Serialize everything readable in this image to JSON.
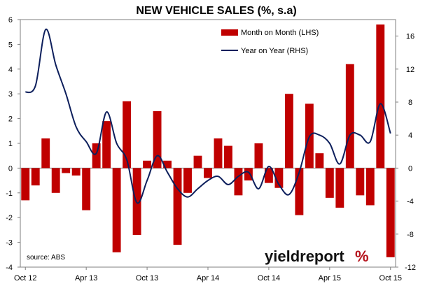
{
  "chart_data": {
    "type": "bar+line",
    "title": "NEW VEHICLE SALES (%, s.a)",
    "x_tick_labels": [
      "Oct 12",
      "Apr 13",
      "Oct 13",
      "Apr 14",
      "Oct 14",
      "Apr 15",
      "Oct 15"
    ],
    "months": [
      "Oct 12",
      "Nov 12",
      "Dec 12",
      "Jan 13",
      "Feb 13",
      "Mar 13",
      "Apr 13",
      "May 13",
      "Jun 13",
      "Jul 13",
      "Aug 13",
      "Sep 13",
      "Oct 13",
      "Nov 13",
      "Dec 13",
      "Jan 14",
      "Feb 14",
      "Mar 14",
      "Apr 14",
      "May 14",
      "Jun 14",
      "Jul 14",
      "Aug 14",
      "Sep 14",
      "Oct 14",
      "Nov 14",
      "Dec 14",
      "Jan 15",
      "Feb 15",
      "Mar 15",
      "Apr 15",
      "May 15",
      "Jun 15",
      "Jul 15",
      "Aug 15",
      "Sep 15",
      "Oct 15"
    ],
    "series": [
      {
        "name": "Month on Month (LHS)",
        "type": "bar",
        "axis": "left",
        "color": "#c00000",
        "values": [
          -1.3,
          -0.7,
          1.2,
          -1.0,
          -0.2,
          -0.3,
          -1.7,
          1.0,
          1.9,
          -3.4,
          2.7,
          -2.7,
          0.3,
          2.3,
          0.3,
          -3.1,
          -1.0,
          0.5,
          -0.4,
          1.2,
          0.9,
          -1.1,
          -0.5,
          1.0,
          -0.6,
          -0.8,
          3.0,
          -1.9,
          2.6,
          0.6,
          -1.2,
          -1.6,
          4.2,
          -1.1,
          -1.5,
          5.8,
          -3.6
        ]
      },
      {
        "name": "Year on Year (RHS)",
        "type": "line",
        "axis": "right",
        "color": "#0d1f5c",
        "values": [
          9.2,
          10.0,
          16.8,
          12.5,
          9.0,
          5.0,
          3.2,
          1.8,
          6.8,
          3.0,
          1.0,
          -4.2,
          -1.5,
          1.5,
          -0.5,
          -2.5,
          -3.5,
          -2.5,
          -1.5,
          -1.0,
          -2.0,
          -1.0,
          -0.5,
          -2.5,
          0.2,
          -2.0,
          -3.2,
          -0.5,
          3.8,
          4.0,
          3.0,
          0.5,
          4.0,
          4.0,
          3.2,
          7.8,
          4.2
        ]
      }
    ],
    "left_axis": {
      "min": -4,
      "max": 6,
      "ticks": [
        "6",
        "5",
        "4",
        "3",
        "2",
        "1",
        "0",
        "-1",
        "-2",
        "-3",
        "-4"
      ]
    },
    "right_axis": {
      "min": -12,
      "max": 18,
      "ticks": [
        "16",
        "12",
        "8",
        "4",
        "0",
        "-4",
        "-8",
        "-12"
      ]
    },
    "legend_position": "top-right",
    "grid": false,
    "source_text": "source: ABS",
    "logo_text_main": "yieldreport",
    "logo_text_mark": "%"
  }
}
